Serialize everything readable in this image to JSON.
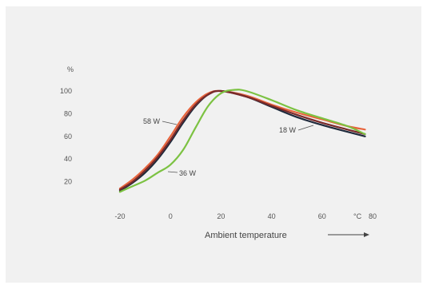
{
  "chart_data": {
    "type": "line",
    "xlabel": "Ambient temperature",
    "ylabel": "%",
    "x_unit": "°C",
    "xlim": [
      -25,
      80
    ],
    "ylim": [
      0,
      108
    ],
    "xticks": [
      "-20",
      "0",
      "20",
      "40",
      "60",
      "80"
    ],
    "yticks": [
      "20",
      "40",
      "60",
      "80",
      "100"
    ],
    "grid": false,
    "legend": "none",
    "annotations": [
      {
        "text": "58 W",
        "series": 0
      },
      {
        "text": "36 W",
        "series": 3
      },
      {
        "text": "18 W",
        "series": 2
      }
    ],
    "series": [
      {
        "color": "#e8643c",
        "points": [
          [
            -20,
            14
          ],
          [
            -15,
            22
          ],
          [
            -10,
            32
          ],
          [
            -5,
            44
          ],
          [
            0,
            60
          ],
          [
            5,
            77
          ],
          [
            10,
            90
          ],
          [
            15,
            98
          ],
          [
            20,
            100
          ],
          [
            30,
            96
          ],
          [
            40,
            88
          ],
          [
            50,
            81
          ],
          [
            60,
            75
          ],
          [
            70,
            69
          ],
          [
            77,
            66
          ]
        ]
      },
      {
        "color": "#1f2a3c",
        "points": [
          [
            -20,
            12
          ],
          [
            -15,
            19
          ],
          [
            -10,
            28
          ],
          [
            -5,
            40
          ],
          [
            0,
            55
          ],
          [
            5,
            72
          ],
          [
            10,
            87
          ],
          [
            15,
            97
          ],
          [
            20,
            100
          ],
          [
            30,
            95
          ],
          [
            40,
            86
          ],
          [
            50,
            77
          ],
          [
            60,
            70
          ],
          [
            70,
            64
          ],
          [
            77,
            60
          ]
        ]
      },
      {
        "color": "#7a2a2a",
        "points": [
          [
            -20,
            13
          ],
          [
            -15,
            20
          ],
          [
            -10,
            30
          ],
          [
            -5,
            42
          ],
          [
            0,
            57
          ],
          [
            5,
            74
          ],
          [
            10,
            88
          ],
          [
            15,
            97
          ],
          [
            20,
            100
          ],
          [
            30,
            95
          ],
          [
            40,
            87
          ],
          [
            50,
            79
          ],
          [
            60,
            72
          ],
          [
            70,
            66
          ],
          [
            77,
            62
          ]
        ]
      },
      {
        "color": "#7cc242",
        "points": [
          [
            -20,
            11
          ],
          [
            -15,
            16
          ],
          [
            -10,
            21
          ],
          [
            -5,
            28
          ],
          [
            0,
            35
          ],
          [
            5,
            48
          ],
          [
            10,
            68
          ],
          [
            15,
            87
          ],
          [
            20,
            98
          ],
          [
            25,
            101
          ],
          [
            30,
            100
          ],
          [
            40,
            92
          ],
          [
            50,
            83
          ],
          [
            60,
            76
          ],
          [
            70,
            69
          ],
          [
            77,
            62
          ]
        ]
      }
    ]
  }
}
